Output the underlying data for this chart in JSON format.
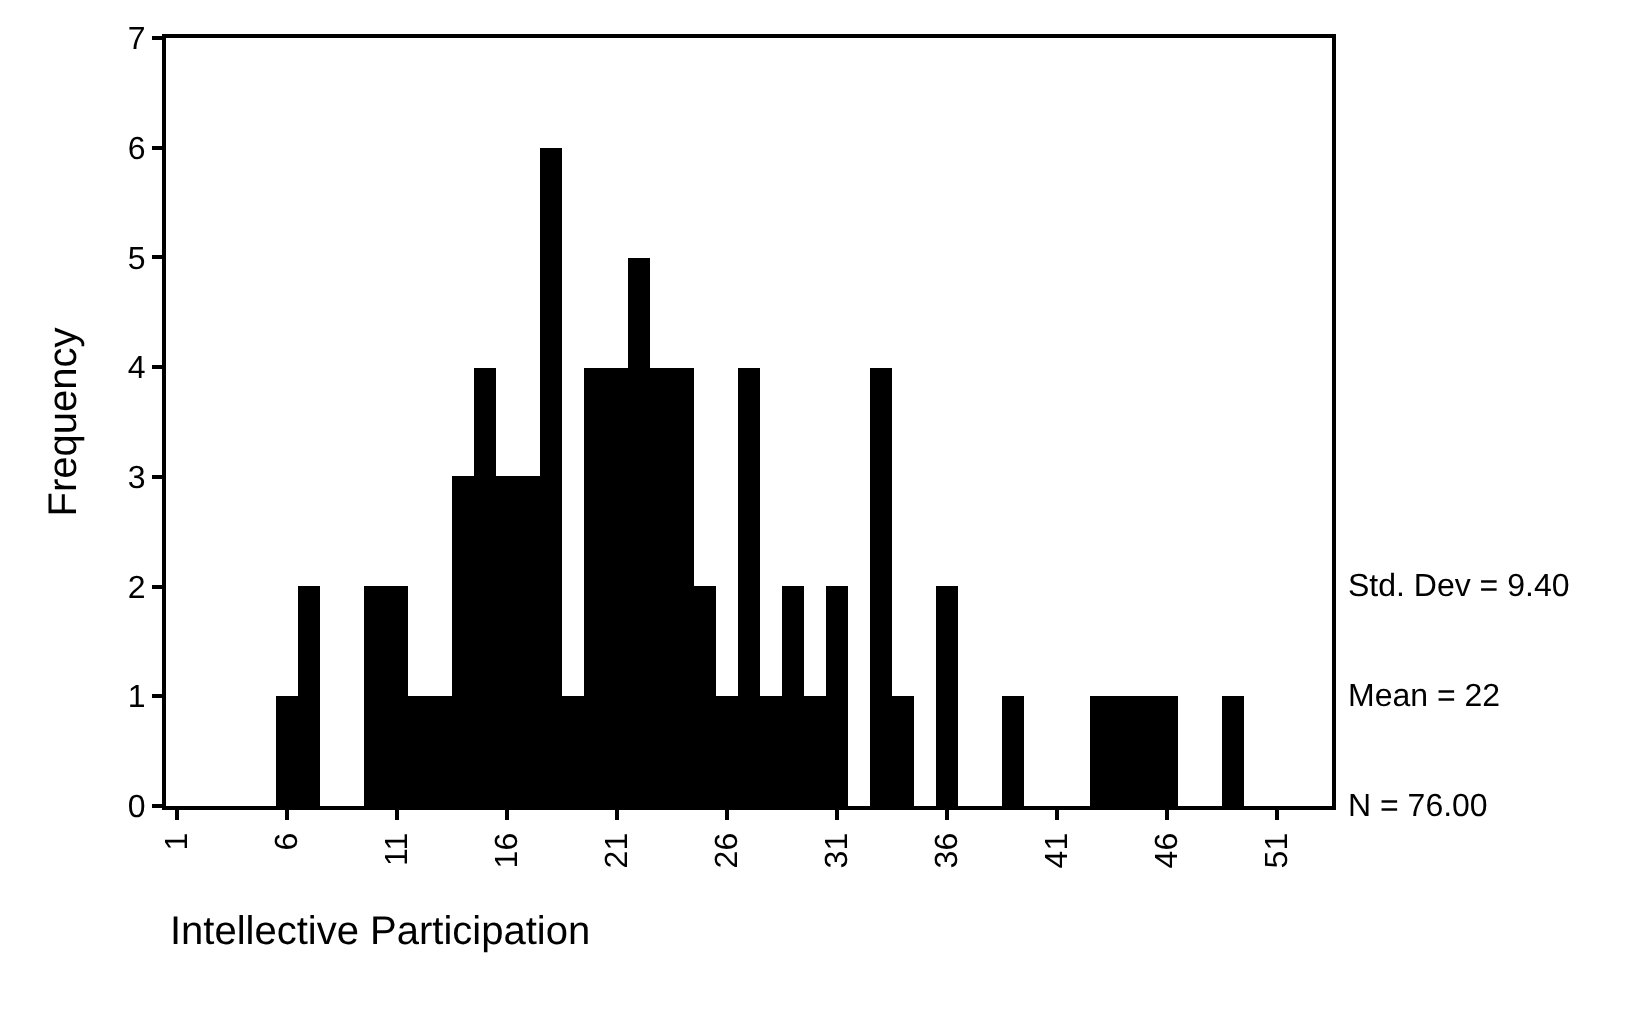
{
  "chart_data": {
    "type": "histogram",
    "xlabel": "Intellective Participation",
    "ylabel": "Frequency",
    "bins": [
      0.5,
      1.5,
      2.5,
      3.5,
      4.5,
      5.5,
      6.5,
      7.5,
      8.5,
      9.5,
      10.5,
      11.5,
      12.5,
      13.5,
      14.5,
      15.5,
      16.5,
      17.5,
      18.5,
      19.5,
      20.5,
      21.5,
      22.5,
      23.5,
      24.5,
      25.5,
      26.5,
      27.5,
      28.5,
      29.5,
      30.5,
      31.5,
      32.5,
      33.5,
      34.5,
      35.5,
      36.5,
      37.5,
      38.5,
      39.5,
      40.5,
      41.5,
      42.5,
      43.5,
      44.5,
      45.5,
      46.5,
      47.5,
      48.5,
      49.5,
      50.5,
      51.5,
      52.5,
      53.5
    ],
    "values": [
      0,
      0,
      0,
      0,
      0,
      1,
      2,
      0,
      0,
      2,
      2,
      1,
      1,
      3,
      4,
      3,
      3,
      6,
      1,
      4,
      4,
      5,
      4,
      4,
      2,
      1,
      4,
      1,
      2,
      1,
      2,
      0,
      4,
      1,
      0,
      2,
      0,
      0,
      1,
      0,
      0,
      0,
      1,
      1,
      1,
      1,
      0,
      0,
      1,
      0,
      0,
      0,
      0
    ],
    "color": "#000000",
    "xlim": [
      0.5,
      53.5
    ],
    "xticks": [
      1,
      6,
      11,
      16,
      21,
      26,
      31,
      36,
      41,
      46,
      51
    ],
    "ylim": [
      0,
      7
    ],
    "yticks": [
      0,
      1,
      2,
      3,
      4,
      5,
      6,
      7
    ],
    "annotations": [
      "Std. Dev = 9.40",
      "Mean = 22",
      "N = 76.00"
    ]
  }
}
